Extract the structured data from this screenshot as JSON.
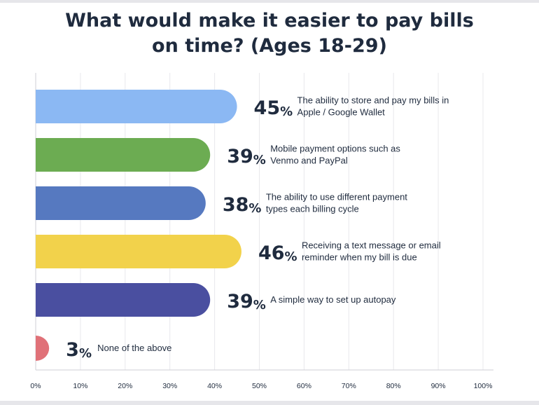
{
  "chart_data": {
    "type": "bar",
    "orientation": "horizontal",
    "title_lines": [
      "What would make it easier to pay bills",
      "on time? (Ages 18-29)"
    ],
    "categories": [
      [
        "The ability to store and pay my bills in",
        "Apple / Google Wallet"
      ],
      [
        "Mobile payment options such as",
        "Venmo and PayPal"
      ],
      [
        "The ability to use different payment",
        "types each billing cycle"
      ],
      [
        "Receiving a text message or email",
        "reminder when my bill is due"
      ],
      [
        "A simple way to set up autopay"
      ],
      [
        "None of the above"
      ]
    ],
    "values": [
      45,
      39,
      38,
      46,
      39,
      3
    ],
    "colors": [
      "#8bb8f3",
      "#6cac52",
      "#5679c0",
      "#f2d24b",
      "#4a4fa0",
      "#e07178"
    ],
    "value_suffix": "%",
    "xlim": [
      0,
      100
    ],
    "xticks": [
      "0%",
      "10%",
      "20%",
      "30%",
      "40%",
      "50%",
      "60%",
      "70%",
      "80%",
      "90%",
      "100%"
    ],
    "grid": true
  }
}
